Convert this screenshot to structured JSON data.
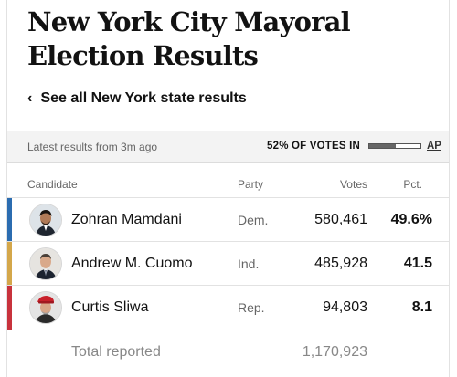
{
  "header": {
    "title_line1": "New York City Mayoral",
    "title_line2": "Election Results",
    "back_link_chevron": "‹",
    "back_link_label": "See all New York state results"
  },
  "status_bar": {
    "latest": "Latest results from 3m ago",
    "votes_in_label": "52% OF VOTES IN",
    "votes_in_fraction": 0.52,
    "source": "AP"
  },
  "columns": {
    "candidate": "Candidate",
    "party": "Party",
    "votes": "Votes",
    "pct": "Pct."
  },
  "candidates": [
    {
      "name": "Zohran Mamdani",
      "party": "Dem.",
      "votes": "580,461",
      "pct": "49.6%",
      "color": "#2b6cb0",
      "avatar_icon": "mamdani-portrait-icon"
    },
    {
      "name": "Andrew M. Cuomo",
      "party": "Ind.",
      "votes": "485,928",
      "pct": "41.5",
      "color": "#d4a74a",
      "avatar_icon": "cuomo-portrait-icon"
    },
    {
      "name": "Curtis Sliwa",
      "party": "Rep.",
      "votes": "94,803",
      "pct": "8.1",
      "color": "#c8323c",
      "avatar_icon": "sliwa-portrait-icon"
    }
  ],
  "total": {
    "label": "Total reported",
    "votes": "1,170,923"
  }
}
